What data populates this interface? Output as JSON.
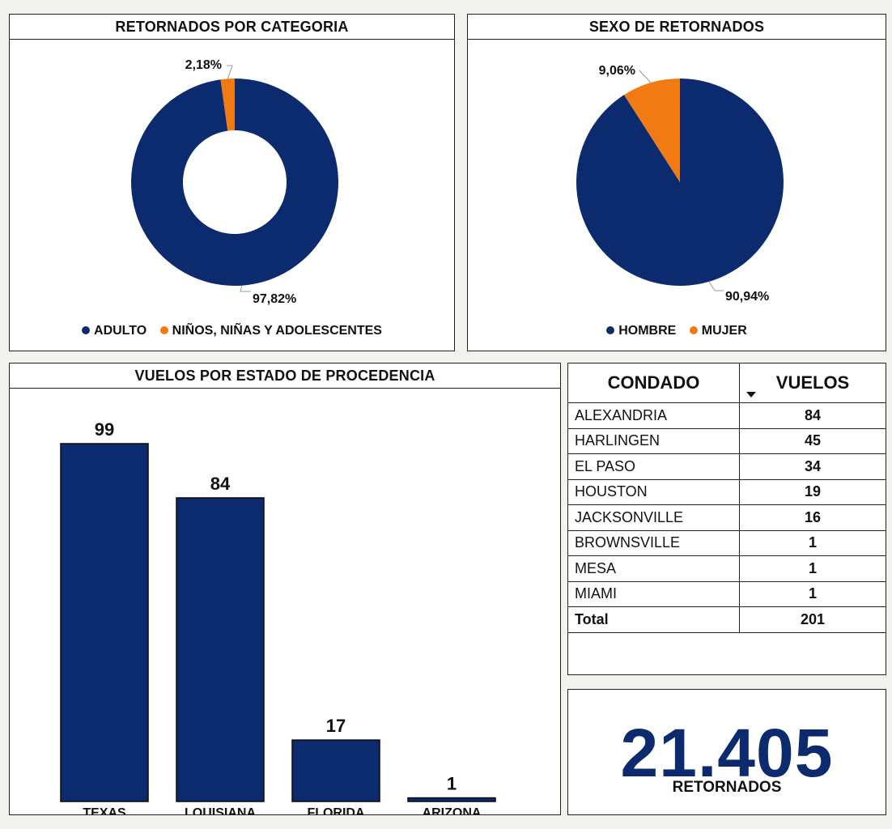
{
  "colors": {
    "primary": "#0c2b6f",
    "accent": "#f07b12"
  },
  "chart_data": [
    {
      "type": "pie",
      "title": "RETORNADOS POR CATEGORIA",
      "donut": true,
      "labels": [
        "ADULTO",
        "NIÑOS, NIÑAS Y ADOLESCENTES"
      ],
      "values": [
        97.82,
        2.18
      ],
      "value_labels": [
        "97,82%",
        "2,18%"
      ],
      "legend": "bottom"
    },
    {
      "type": "pie",
      "title": "SEXO DE RETORNADOS",
      "donut": false,
      "labels": [
        "HOMBRE",
        "MUJER"
      ],
      "values": [
        90.94,
        9.06
      ],
      "value_labels": [
        "90,94%",
        "9,06%"
      ],
      "legend": "bottom"
    },
    {
      "type": "bar",
      "title": "VUELOS POR ESTADO DE PROCEDENCIA",
      "categories": [
        "TEXAS",
        "LOUISIANA",
        "FLORIDA",
        "ARIZONA"
      ],
      "values": [
        99,
        84,
        17,
        1
      ],
      "ylim": [
        0,
        99
      ]
    },
    {
      "type": "table",
      "columns": [
        "CONDADO",
        "VUELOS"
      ],
      "rows": [
        [
          "ALEXANDRIA",
          "84"
        ],
        [
          "HARLINGEN",
          "45"
        ],
        [
          "EL PASO",
          "34"
        ],
        [
          "HOUSTON",
          "19"
        ],
        [
          "JACKSONVILLE",
          "16"
        ],
        [
          "BROWNSVILLE",
          "1"
        ],
        [
          "MESA",
          "1"
        ],
        [
          "MIAMI",
          "1"
        ]
      ],
      "total": [
        "Total",
        "201"
      ]
    }
  ],
  "kpi": {
    "value": "21.405",
    "label": "RETORNADOS"
  }
}
